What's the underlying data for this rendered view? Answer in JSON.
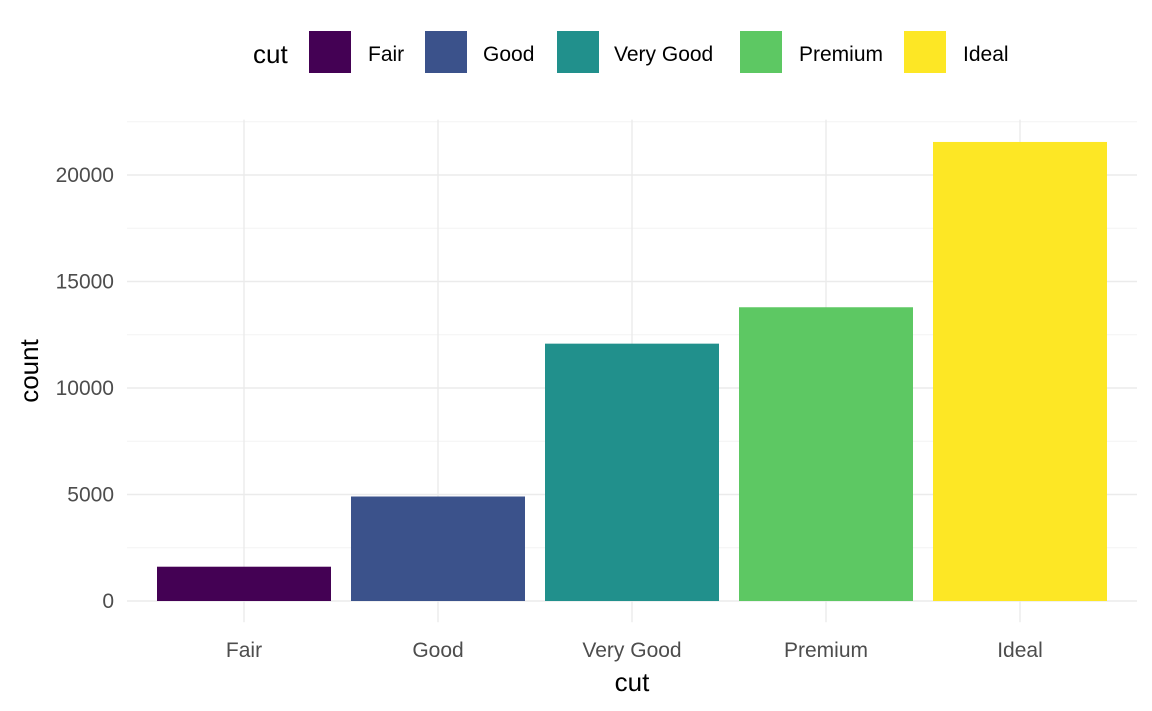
{
  "chart_data": {
    "type": "bar",
    "categories": [
      "Fair",
      "Good",
      "Very Good",
      "Premium",
      "Ideal"
    ],
    "values": [
      1610,
      4906,
      12082,
      13791,
      21551
    ],
    "colors": [
      "#440154",
      "#3b528b",
      "#21908c",
      "#5dc863",
      "#fde725"
    ],
    "xlabel": "cut",
    "ylabel": "count",
    "ylim": [
      -1000,
      22600
    ],
    "yticks": [
      0,
      5000,
      10000,
      15000,
      20000
    ],
    "ytick_labels": [
      "0",
      "5000",
      "10000",
      "15000",
      "20000"
    ],
    "legend": {
      "title": "cut",
      "position": "top",
      "entries": [
        "Fair",
        "Good",
        "Very Good",
        "Premium",
        "Ideal"
      ]
    },
    "grid": true
  }
}
